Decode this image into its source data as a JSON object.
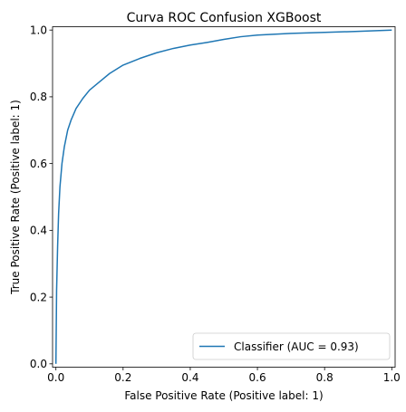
{
  "chart_data": {
    "type": "line",
    "title": "Curva ROC Confusion XGBoost",
    "xlabel": "False Positive Rate (Positive label: 1)",
    "ylabel": "True Positive Rate (Positive label: 1)",
    "xlim": [
      -0.01,
      1.01
    ],
    "ylim": [
      -0.01,
      1.01
    ],
    "xticks": [
      0.0,
      0.2,
      0.4,
      0.6,
      0.8,
      1.0
    ],
    "xtick_labels": [
      "0.0",
      "0.2",
      "0.4",
      "0.6",
      "0.8",
      "1.0"
    ],
    "yticks": [
      0.0,
      0.2,
      0.4,
      0.6,
      0.8,
      1.0
    ],
    "ytick_labels": [
      "0.0",
      "0.2",
      "0.4",
      "0.6",
      "0.8",
      "1.0"
    ],
    "grid": false,
    "legend_position": "lower-right",
    "series": [
      {
        "name": "Classifier (AUC = 0.93)",
        "color": "#1f77b4",
        "x": [
          0.0,
          0.002,
          0.005,
          0.008,
          0.012,
          0.018,
          0.025,
          0.035,
          0.045,
          0.06,
          0.08,
          0.1,
          0.13,
          0.16,
          0.2,
          0.25,
          0.3,
          0.35,
          0.4,
          0.45,
          0.5,
          0.55,
          0.6,
          0.7,
          0.8,
          0.9,
          1.0
        ],
        "y": [
          0.0,
          0.22,
          0.35,
          0.45,
          0.53,
          0.6,
          0.65,
          0.7,
          0.73,
          0.765,
          0.795,
          0.82,
          0.845,
          0.87,
          0.895,
          0.915,
          0.932,
          0.945,
          0.955,
          0.963,
          0.972,
          0.98,
          0.985,
          0.99,
          0.993,
          0.996,
          1.0
        ]
      }
    ]
  }
}
